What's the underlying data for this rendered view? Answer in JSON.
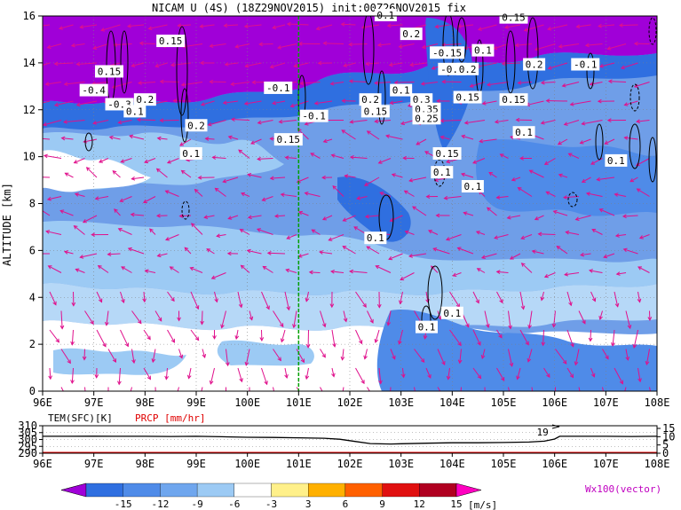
{
  "header": {
    "title": "NICAM U (4S) (18Z29NOV2015) init:00Z26NOV2015 fix"
  },
  "chart_data": [
    {
      "type": "heatmap",
      "ylabel": "ALTITUDE [km]",
      "x_ticks": [
        "96E",
        "97E",
        "98E",
        "99E",
        "100E",
        "101E",
        "102E",
        "103E",
        "104E",
        "105E",
        "106E",
        "107E",
        "108E"
      ],
      "y_ticks": [
        "0",
        "2",
        "4",
        "6",
        "8",
        "10",
        "12",
        "14",
        "16"
      ],
      "xlim": [
        96,
        108
      ],
      "ylim": [
        0,
        16
      ],
      "reference_line_lon": 101,
      "contour_labels": [
        {
          "lon": 97.3,
          "alt": 13.6,
          "text": "0.15"
        },
        {
          "lon": 98.5,
          "alt": 14.9,
          "text": "0.15"
        },
        {
          "lon": 102.7,
          "alt": 16.0,
          "text": "0.1"
        },
        {
          "lon": 103.2,
          "alt": 15.2,
          "text": "0.2"
        },
        {
          "lon": 105.2,
          "alt": 15.9,
          "text": "0.15"
        },
        {
          "lon": 97.0,
          "alt": 12.8,
          "text": "-0.4"
        },
        {
          "lon": 97.5,
          "alt": 12.2,
          "text": "-0.3"
        },
        {
          "lon": 97.8,
          "alt": 11.9,
          "text": "0.1"
        },
        {
          "lon": 98.0,
          "alt": 12.4,
          "text": "0.2"
        },
        {
          "lon": 99.0,
          "alt": 11.3,
          "text": "0.2"
        },
        {
          "lon": 98.9,
          "alt": 10.1,
          "text": "0.1"
        },
        {
          "lon": 100.6,
          "alt": 12.9,
          "text": "-0.1"
        },
        {
          "lon": 100.8,
          "alt": 10.7,
          "text": "0.15"
        },
        {
          "lon": 101.3,
          "alt": 11.7,
          "text": "-0.1"
        },
        {
          "lon": 102.4,
          "alt": 12.4,
          "text": "0.2"
        },
        {
          "lon": 102.5,
          "alt": 11.9,
          "text": "0.15"
        },
        {
          "lon": 103.0,
          "alt": 12.8,
          "text": "0.1"
        },
        {
          "lon": 103.4,
          "alt": 12.4,
          "text": "0.3"
        },
        {
          "lon": 103.5,
          "alt": 12.0,
          "text": "0.35"
        },
        {
          "lon": 103.5,
          "alt": 11.6,
          "text": "0.25"
        },
        {
          "lon": 103.9,
          "alt": 14.4,
          "text": "-0.15"
        },
        {
          "lon": 104.0,
          "alt": 13.7,
          "text": "-0.1"
        },
        {
          "lon": 104.3,
          "alt": 13.7,
          "text": "0.2"
        },
        {
          "lon": 104.6,
          "alt": 14.5,
          "text": "0.1"
        },
        {
          "lon": 104.3,
          "alt": 12.5,
          "text": "0.15"
        },
        {
          "lon": 105.2,
          "alt": 12.4,
          "text": "0.15"
        },
        {
          "lon": 105.6,
          "alt": 13.9,
          "text": "0.2"
        },
        {
          "lon": 106.6,
          "alt": 13.9,
          "text": "-0.1"
        },
        {
          "lon": 105.4,
          "alt": 11.0,
          "text": "0.1"
        },
        {
          "lon": 103.9,
          "alt": 10.1,
          "text": "0.15"
        },
        {
          "lon": 103.8,
          "alt": 9.3,
          "text": "0.1"
        },
        {
          "lon": 104.4,
          "alt": 8.7,
          "text": "0.1"
        },
        {
          "lon": 102.5,
          "alt": 6.5,
          "text": "0.1"
        },
        {
          "lon": 104.0,
          "alt": 3.3,
          "text": "0.1"
        },
        {
          "lon": 103.5,
          "alt": 2.7,
          "text": "0.1"
        },
        {
          "lon": 107.2,
          "alt": 9.8,
          "text": "0.1"
        }
      ]
    },
    {
      "type": "line",
      "left_label": "TEM(SFC)[K]",
      "right_label": "PRCP [mm/hr]",
      "left_ticks": [
        "310",
        "305",
        "300",
        "295",
        "290"
      ],
      "right_ticks": [
        "15",
        "10",
        "5",
        "0"
      ],
      "x_ticks": [
        "96E",
        "97E",
        "98E",
        "99E",
        "100E",
        "101E",
        "102E",
        "103E",
        "104E",
        "105E",
        "106E",
        "107E",
        "108E"
      ],
      "series": [
        {
          "x": [
            96,
            96.5,
            97,
            97.5,
            98,
            98.5,
            99,
            99.5,
            100,
            100.5,
            101,
            101.5,
            101.8,
            102.1,
            102.4,
            102.8,
            103,
            103.5,
            104,
            104.5,
            105,
            105.5,
            105.8,
            106.0,
            106.1,
            106.5,
            107,
            107.5,
            108
          ],
          "values": [
            302.3,
            302.3,
            302.4,
            302.3,
            302.3,
            302.2,
            302.3,
            302.0,
            301.6,
            301.5,
            301.2,
            300.9,
            300.2,
            298.6,
            297.0,
            296.7,
            296.9,
            297.3,
            297.6,
            297.6,
            297.8,
            298.1,
            298.8,
            300.3,
            302.3,
            302.3,
            302.3,
            302.2,
            302.3
          ]
        }
      ],
      "annotation": "19"
    }
  ],
  "colorbar": {
    "ticks": [
      "-15",
      "-12",
      "-9",
      "-6",
      "-3",
      "3",
      "6",
      "9",
      "12",
      "15"
    ],
    "colors": [
      "#a000d8",
      "#2f6fe0",
      "#4f8be8",
      "#6fa6ee",
      "#9ccaf4",
      "#ffffff",
      "#fff08a",
      "#ffb000",
      "#ff6000",
      "#e01010",
      "#b00020",
      "#ff00c0"
    ],
    "units": "[m/s]",
    "vector_label": "Wx100(vector)"
  }
}
